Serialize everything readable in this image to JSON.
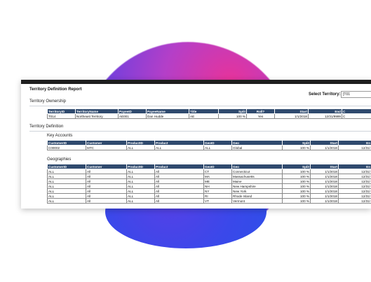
{
  "report": {
    "title": "Territory Definition Report",
    "select_label": "Select Territory:",
    "select_value": "[T01"
  },
  "ownership": {
    "title": "Territory Ownership",
    "headers": [
      "TerritoryID",
      "TerritoryName",
      "PayeeID",
      "PayeeName",
      "Title",
      "Split",
      "Roll?",
      "Start",
      "End",
      "C"
    ],
    "rows": [
      [
        "T014",
        "Northeast Territory",
        "AE001",
        "Dan Hudde",
        "AE",
        "100 %",
        "Yes",
        "1/1/2018",
        "12/31/9999",
        "C"
      ]
    ]
  },
  "definition": {
    "title": "Territory Definition"
  },
  "key_accounts": {
    "title": "Key Accounts",
    "headers": [
      "CustomerID",
      "Customer",
      "ProductID",
      "Product",
      "GeoID",
      "Geo",
      "Split",
      "Start",
      "En"
    ],
    "rows": [
      [
        "C00002",
        "MTC",
        "ALL",
        "ALL",
        "ALL",
        "Global",
        "100 %",
        "1/1/2018",
        "12/31/"
      ]
    ]
  },
  "geographies": {
    "title": "Geographies",
    "headers": [
      "CustomerID",
      "Customer",
      "ProductID",
      "Product",
      "GeoID",
      "Geo",
      "Split",
      "Start",
      "En"
    ],
    "rows": [
      [
        "ALL",
        "All",
        "ALL",
        "All",
        "CT",
        "Connecticut",
        "100 %",
        "1/1/2018",
        "12/31/"
      ],
      [
        "ALL",
        "All",
        "ALL",
        "All",
        "MA",
        "Massachusetts",
        "100 %",
        "1/1/2018",
        "12/31/"
      ],
      [
        "ALL",
        "All",
        "ALL",
        "All",
        "ME",
        "Maine",
        "100 %",
        "1/1/2018",
        "12/31/"
      ],
      [
        "ALL",
        "All",
        "ALL",
        "All",
        "NH",
        "New Hampshire",
        "100 %",
        "1/1/2018",
        "12/31/"
      ],
      [
        "ALL",
        "All",
        "ALL",
        "All",
        "NY",
        "New York",
        "100 %",
        "1/1/2018",
        "12/31/"
      ],
      [
        "ALL",
        "All",
        "ALL",
        "All",
        "RI",
        "Rhode Island",
        "100 %",
        "1/1/2018",
        "12/31/"
      ],
      [
        "ALL",
        "All",
        "ALL",
        "All",
        "VT",
        "Vermont",
        "100 %",
        "1/1/2018",
        "12/31/"
      ]
    ]
  }
}
